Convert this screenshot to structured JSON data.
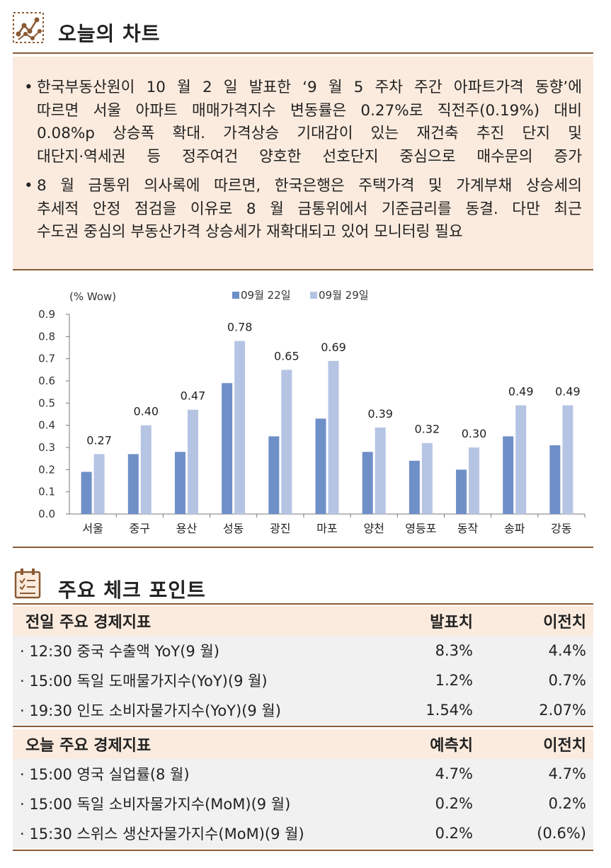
{
  "section1": {
    "title": "오늘의 차트",
    "icon": "network-chart-icon"
  },
  "summary": {
    "bullets": [
      {
        "marker": "•",
        "lines": [
          "한국부동산원이 10 월 2 일 발표한 ‘9 월 5 주차 주간 아파트가격 동향’에",
          "따르면 서울 아파트 매매가격지수 변동률은 0.27%로 직전주(0.19%) 대비",
          "0.08%p 상승폭 확대. 가격상승 기대감이 있는 재건축 추진 단지 및",
          "대단지·역세권 등 정주여건 양호한 선호단지 중심으로 매수문의 증가"
        ]
      },
      {
        "marker": "•",
        "lines": [
          "8 월 금통위 의사록에 따르면, 한국은행은 주택가격 및 가계부채 상승세의",
          "추세적 안정 점검을 이유로 8 월 금통위에서 기준금리를 동결. 다만 최근",
          "수도권 중심의 부동산가격 상승세가 재확대되고 있어 모니터링 필요"
        ]
      }
    ]
  },
  "chart_data": {
    "type": "bar",
    "ylabel": "(% Wow)",
    "ylim": [
      0,
      0.9
    ],
    "yticks": [
      "0.0",
      "0.1",
      "0.2",
      "0.3",
      "0.4",
      "0.5",
      "0.6",
      "0.7",
      "0.8",
      "0.9"
    ],
    "categories": [
      "서울",
      "중구",
      "용산",
      "성동",
      "광진",
      "마포",
      "양천",
      "영등포",
      "동작",
      "송파",
      "강동"
    ],
    "series": [
      {
        "name": "09월 22일",
        "color": "#6f8fc8",
        "values": [
          0.19,
          0.27,
          0.28,
          0.59,
          0.35,
          0.43,
          0.28,
          0.24,
          0.2,
          0.35,
          0.31
        ]
      },
      {
        "name": "09월 29일",
        "color": "#b6c4e4",
        "values": [
          0.27,
          0.4,
          0.47,
          0.78,
          0.65,
          0.69,
          0.39,
          0.32,
          0.3,
          0.49,
          0.49
        ]
      }
    ],
    "data_labels": [
      "0.27",
      "0.40",
      "0.47",
      "0.78",
      "0.65",
      "0.69",
      "0.39",
      "0.32",
      "0.30",
      "0.49",
      "0.49"
    ],
    "legend_position": "top",
    "grid": false
  },
  "section2": {
    "title": "주요 체크 포인트",
    "icon": "checklist-icon"
  },
  "prev_indicators": {
    "header": {
      "name": "전일 주요 경제지표",
      "col1": "발표치",
      "col2": "이전치"
    },
    "rows": [
      {
        "name": "· 12:30 중국 수출액 YoY(9 월)",
        "v1": "8.3%",
        "v2": "4.4%"
      },
      {
        "name": "· 15:00 독일 도매물가지수(YoY)(9 월)",
        "v1": "1.2%",
        "v2": "0.7%"
      },
      {
        "name": "· 19:30 인도 소비자물가지수(YoY)(9 월)",
        "v1": "1.54%",
        "v2": "2.07%"
      }
    ]
  },
  "today_indicators": {
    "header": {
      "name": "오늘 주요 경제지표",
      "col1": "예측치",
      "col2": "이전치"
    },
    "rows": [
      {
        "name": "· 15:00 영국 실업률(8 월)",
        "v1": "4.7%",
        "v2": "4.7%"
      },
      {
        "name": "· 15:00 독일 소비자물가지수(MoM)(9 월)",
        "v1": "0.2%",
        "v2": "0.2%"
      },
      {
        "name": "· 15:30 스위스 생산자물가지수(MoM)(9 월)",
        "v1": "0.2%",
        "v2": "(0.6%)"
      }
    ]
  },
  "colors": {
    "accent": "#8a5a34",
    "highlight_bg": "#fbebde",
    "row_bg": "#f1f1f1"
  }
}
